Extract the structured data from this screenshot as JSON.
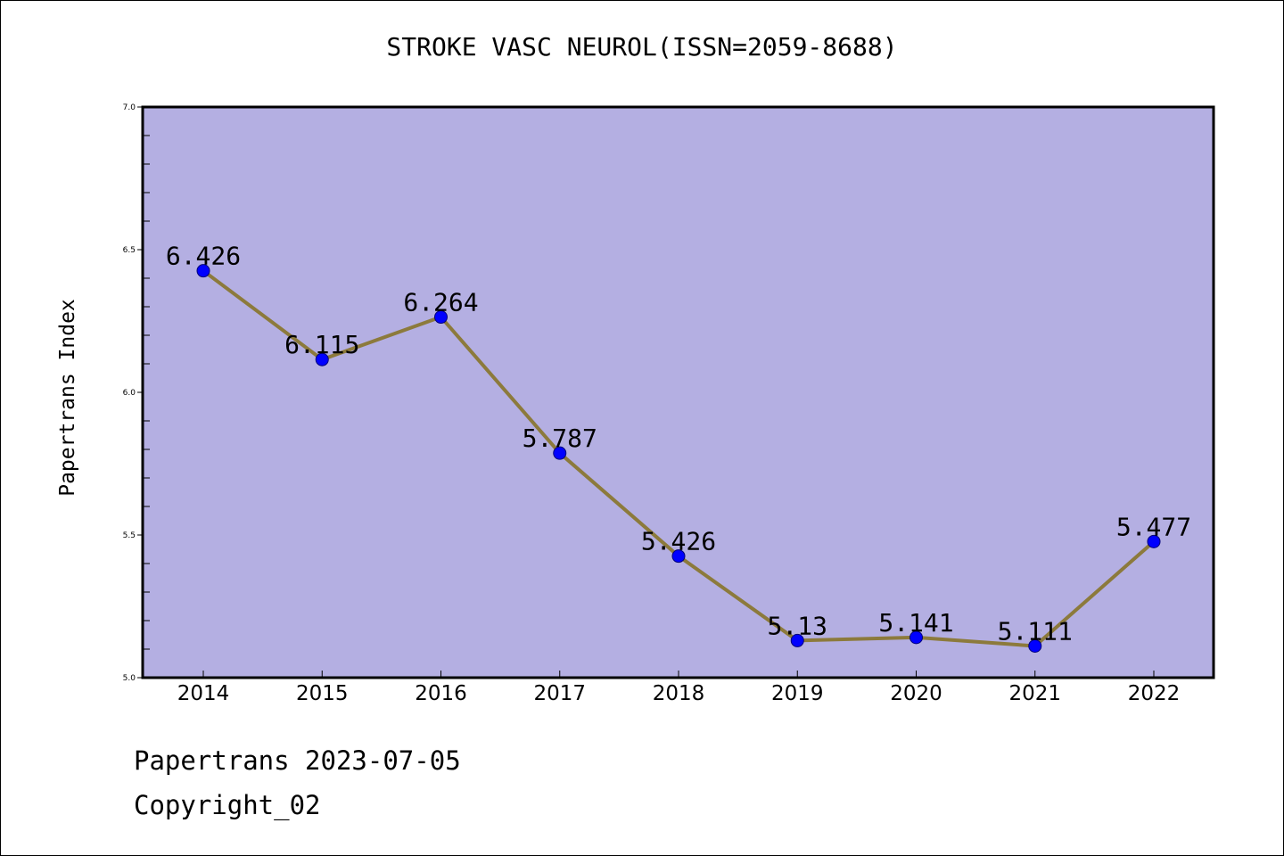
{
  "chart_data": {
    "type": "line",
    "title": "STROKE VASC NEUROL(ISSN=2059-8688)",
    "xlabel": "",
    "ylabel": "Papertrans Index",
    "categories": [
      "2014",
      "2015",
      "2016",
      "2017",
      "2018",
      "2019",
      "2020",
      "2021",
      "2022"
    ],
    "series": [
      {
        "values": [
          6.426,
          6.115,
          6.264,
          5.787,
          5.426,
          5.13,
          5.141,
          5.111,
          5.477
        ]
      }
    ],
    "data_labels": [
      "6.426",
      "6.115",
      "6.264",
      "5.787",
      "5.426",
      "5.13",
      "5.141",
      "5.111",
      "5.477"
    ],
    "ylim": [
      5.0,
      7.0
    ],
    "yticks": [
      "5.0",
      "5.5",
      "6.0",
      "6.5",
      "7.0"
    ],
    "grid": false,
    "legend": "none"
  },
  "footer": {
    "date_line": "Papertrans 2023-07-05",
    "copyright": "Copyright_02"
  },
  "colors": {
    "plot_background": "#b4afe2",
    "line": "#8c7a3c",
    "marker_fill": "#0000ff",
    "marker_edge": "#00007a",
    "axis": "#000000"
  }
}
